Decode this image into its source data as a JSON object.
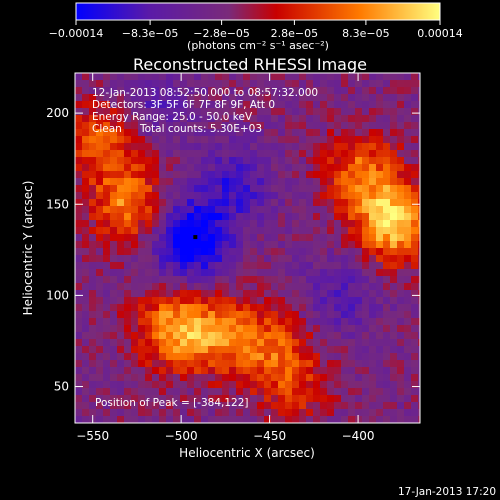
{
  "chart_data": {
    "type": "heatmap",
    "title": "Reconstructed RHESSI Image",
    "xlabel": "Heliocentric X (arcsec)",
    "ylabel": "Heliocentric Y (arcsec)",
    "xlim": [
      -560,
      -365
    ],
    "ylim": [
      30,
      222
    ],
    "x_ticks": [
      -550,
      -500,
      -450,
      -400
    ],
    "y_ticks": [
      50,
      100,
      150,
      200
    ],
    "x_tick_labels": [
      "−550",
      "−500",
      "−450",
      "−400"
    ],
    "y_tick_labels": [
      "50",
      "100",
      "150",
      "200"
    ],
    "colorbar": {
      "range": [
        -0.00014,
        0.00014
      ],
      "ticks": [
        -0.00014,
        -8.3e-05,
        -2.8e-05,
        2.8e-05,
        8.3e-05,
        0.00014
      ],
      "tick_labels": [
        "−0.00014",
        "−8.3e−05",
        "−2.8e−05",
        "2.8e−05",
        "8.3e−05",
        "0.00014"
      ],
      "unit_label": "(photons cm⁻² s⁻¹ asec⁻²)",
      "colors": [
        "#0000ff",
        "#5a1aa8",
        "#7a2a7a",
        "#c80000",
        "#ff7a00",
        "#ffff80"
      ]
    },
    "sources": [
      {
        "x": -380,
        "y": 140,
        "amplitude": 1.0
      },
      {
        "x": -398,
        "y": 168,
        "amplitude": 0.6
      },
      {
        "x": -530,
        "y": 150,
        "amplitude": 0.7
      },
      {
        "x": -545,
        "y": 185,
        "amplitude": 0.55
      },
      {
        "x": -505,
        "y": 82,
        "amplitude": 0.75
      },
      {
        "x": -478,
        "y": 78,
        "amplitude": 0.6
      },
      {
        "x": -448,
        "y": 72,
        "amplitude": 0.5
      },
      {
        "x": -435,
        "y": 50,
        "amplitude": 0.35
      },
      {
        "x": -495,
        "y": 130,
        "amplitude": -0.9
      },
      {
        "x": -470,
        "y": 160,
        "amplitude": -0.45
      },
      {
        "x": -515,
        "y": 205,
        "amplitude": -0.3
      },
      {
        "x": -410,
        "y": 100,
        "amplitude": -0.35
      }
    ],
    "peak_marker": {
      "x": -492,
      "y": 132
    }
  },
  "annotations": {
    "time_range": "12-Jan-2013 08:52:50.000 to 08:57:32.000",
    "detectors": "Detectors: 3F 5F 6F 7F 8F 9F, Att 0",
    "energy_range": "Energy Range: 25.0 - 50.0 keV",
    "method": "Clean",
    "total_counts": "Total counts: 5.30E+03",
    "peak_position": "Position of Peak = [-384,122]"
  },
  "footer": {
    "timestamp": "17-Jan-2013 17:20"
  }
}
